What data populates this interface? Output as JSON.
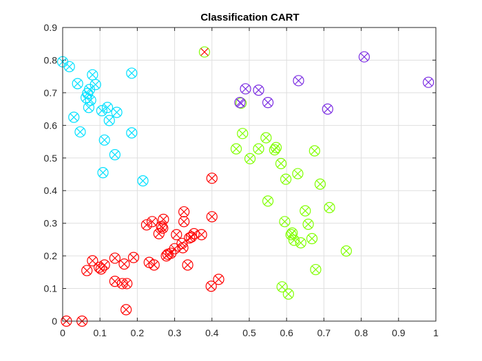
{
  "chart_data": {
    "type": "scatter",
    "title": "Classification CART",
    "xlabel": "",
    "ylabel": "",
    "xlim": [
      0,
      1
    ],
    "ylim": [
      0,
      0.9
    ],
    "x_ticks": [
      "0",
      "0.1",
      "0.2",
      "0.3",
      "0.4",
      "0.5",
      "0.6",
      "0.7",
      "0.8",
      "0.9",
      "1"
    ],
    "y_ticks": [
      "0",
      "0.1",
      "0.2",
      "0.3",
      "0.4",
      "0.5",
      "0.6",
      "0.7",
      "0.8",
      "0.9"
    ],
    "grid": true,
    "marker_style": "circle with x (true class), x mark (predicted class)",
    "series": [
      {
        "color": "#00e0ff",
        "points": [
          [
            0.0,
            0.795
          ],
          [
            0.018,
            0.78
          ],
          [
            0.03,
            0.625
          ],
          [
            0.04,
            0.728
          ],
          [
            0.047,
            0.58
          ],
          [
            0.063,
            0.685
          ],
          [
            0.067,
            0.698
          ],
          [
            0.072,
            0.71
          ],
          [
            0.07,
            0.655
          ],
          [
            0.075,
            0.677
          ],
          [
            0.08,
            0.755
          ],
          [
            0.088,
            0.725
          ],
          [
            0.105,
            0.645
          ],
          [
            0.108,
            0.455
          ],
          [
            0.112,
            0.555
          ],
          [
            0.12,
            0.655
          ],
          [
            0.125,
            0.615
          ],
          [
            0.14,
            0.51
          ],
          [
            0.145,
            0.64
          ],
          [
            0.185,
            0.76
          ],
          [
            0.185,
            0.577
          ],
          [
            0.215,
            0.43
          ]
        ]
      },
      {
        "color": "#ff0000",
        "points": [
          [
            0.01,
            0.0
          ],
          [
            0.052,
            0.0
          ],
          [
            0.065,
            0.155
          ],
          [
            0.08,
            0.185
          ],
          [
            0.098,
            0.165
          ],
          [
            0.103,
            0.16
          ],
          [
            0.112,
            0.172
          ],
          [
            0.14,
            0.193
          ],
          [
            0.14,
            0.122
          ],
          [
            0.16,
            0.115
          ],
          [
            0.165,
            0.175
          ],
          [
            0.172,
            0.115
          ],
          [
            0.17,
            0.035
          ],
          [
            0.19,
            0.195
          ],
          [
            0.225,
            0.295
          ],
          [
            0.232,
            0.18
          ],
          [
            0.24,
            0.305
          ],
          [
            0.245,
            0.172
          ],
          [
            0.258,
            0.268
          ],
          [
            0.265,
            0.29
          ],
          [
            0.268,
            0.285
          ],
          [
            0.27,
            0.312
          ],
          [
            0.278,
            0.2
          ],
          [
            0.282,
            0.205
          ],
          [
            0.29,
            0.208
          ],
          [
            0.3,
            0.222
          ],
          [
            0.305,
            0.265
          ],
          [
            0.32,
            0.238
          ],
          [
            0.322,
            0.225
          ],
          [
            0.325,
            0.335
          ],
          [
            0.325,
            0.305
          ],
          [
            0.335,
            0.172
          ],
          [
            0.34,
            0.255
          ],
          [
            0.345,
            0.258
          ],
          [
            0.352,
            0.268
          ],
          [
            0.372,
            0.265
          ],
          [
            0.398,
            0.107
          ],
          [
            0.4,
            0.438
          ],
          [
            0.4,
            0.32
          ],
          [
            0.418,
            0.128
          ]
        ]
      },
      {
        "color": "#80ff00",
        "points": [
          [
            0.38,
            0.825
          ],
          [
            0.465,
            0.528
          ],
          [
            0.478,
            0.668
          ],
          [
            0.482,
            0.575
          ],
          [
            0.502,
            0.498
          ],
          [
            0.525,
            0.528
          ],
          [
            0.545,
            0.562
          ],
          [
            0.55,
            0.368
          ],
          [
            0.568,
            0.525
          ],
          [
            0.572,
            0.532
          ],
          [
            0.585,
            0.483
          ],
          [
            0.588,
            0.105
          ],
          [
            0.595,
            0.305
          ],
          [
            0.598,
            0.435
          ],
          [
            0.605,
            0.083
          ],
          [
            0.612,
            0.265
          ],
          [
            0.615,
            0.27
          ],
          [
            0.62,
            0.248
          ],
          [
            0.63,
            0.452
          ],
          [
            0.638,
            0.24
          ],
          [
            0.65,
            0.338
          ],
          [
            0.658,
            0.297
          ],
          [
            0.668,
            0.253
          ],
          [
            0.675,
            0.522
          ],
          [
            0.678,
            0.158
          ],
          [
            0.69,
            0.42
          ],
          [
            0.715,
            0.348
          ],
          [
            0.76,
            0.215
          ]
        ]
      },
      {
        "color": "#7a2be2",
        "points": [
          [
            0.475,
            0.67
          ],
          [
            0.49,
            0.712
          ],
          [
            0.525,
            0.708
          ],
          [
            0.55,
            0.67
          ],
          [
            0.632,
            0.737
          ],
          [
            0.71,
            0.65
          ],
          [
            0.808,
            0.81
          ],
          [
            0.98,
            0.732
          ]
        ]
      }
    ],
    "misclassified": [
      {
        "x": 0.38,
        "y": 0.825,
        "circle_color": "#80ff00",
        "x_color": "#ff0000"
      },
      {
        "x": 0.478,
        "y": 0.668,
        "circle_color": "#80ff00",
        "x_color": "#7a2be2"
      }
    ]
  }
}
